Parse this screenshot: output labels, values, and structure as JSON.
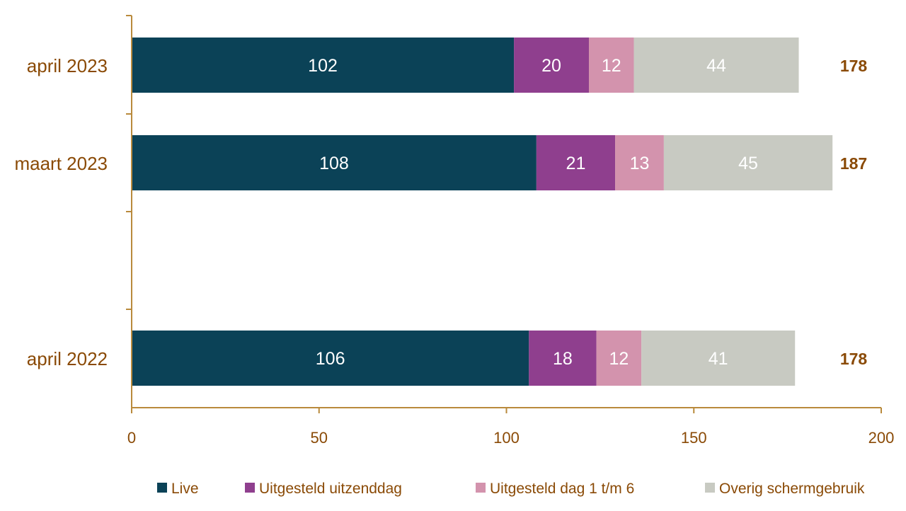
{
  "chart_data": {
    "type": "bar",
    "orientation": "horizontal",
    "stacked": true,
    "title": "",
    "xlabel": "",
    "ylabel": "",
    "xlim": [
      0,
      200
    ],
    "x_ticks": [
      0,
      50,
      100,
      150,
      200
    ],
    "grid": false,
    "legend_position": "bottom",
    "categories": [
      "april 2023",
      "maart 2023",
      "april 2022"
    ],
    "series": [
      {
        "name": "Live",
        "color": "#0b4257",
        "values": [
          102,
          108,
          106
        ]
      },
      {
        "name": "Uitgesteld uitzenddag",
        "color": "#8f3f8e",
        "values": [
          20,
          21,
          18
        ]
      },
      {
        "name": "Uitgesteld dag 1 t/m 6",
        "color": "#d393ad",
        "values": [
          12,
          13,
          12
        ]
      },
      {
        "name": "Overig schermgebruik",
        "color": "#c8cac2",
        "values": [
          44,
          45,
          41
        ]
      }
    ],
    "totals": [
      178,
      187,
      178
    ],
    "text_color": "#8a4a06",
    "axis_color": "#b98a3c"
  }
}
